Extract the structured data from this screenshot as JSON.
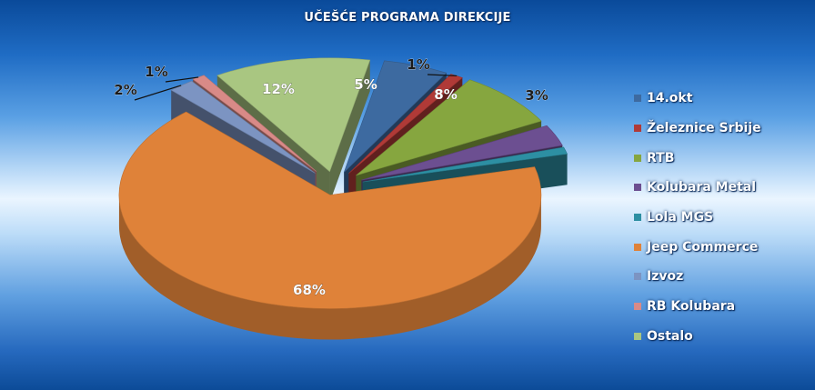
{
  "chart_data": {
    "type": "pie",
    "title": "UČEŠĆE PROGRAMA DIREKCIJE",
    "categories": [
      "14.okt",
      "Železnice Srbije",
      "RTB",
      "Kolubara Metal",
      "Lola MGS",
      "Jeep Commerce",
      "Izvoz",
      "RB Kolubara",
      "Ostalo"
    ],
    "values": [
      5,
      1,
      8,
      3,
      0,
      68,
      2,
      1,
      12
    ],
    "data_labels": [
      "5%",
      "1%",
      "8%",
      "3%",
      "",
      "68%",
      "2%",
      "1%",
      "12%"
    ],
    "colors": [
      "#3d6aa0",
      "#b03a37",
      "#86a63f",
      "#6c4f91",
      "#2d8fa3",
      "#df8239",
      "#7c94c2",
      "#d88a87",
      "#a9c681"
    ],
    "legend_position": "right",
    "style": "3d-exploded-pie"
  },
  "legend": [
    {
      "label": "14.okt",
      "color": "#3d6aa0"
    },
    {
      "label": "Železnice Srbije",
      "color": "#b03a37"
    },
    {
      "label": "RTB",
      "color": "#86a63f"
    },
    {
      "label": "Kolubara Metal",
      "color": "#6c4f91"
    },
    {
      "label": "Lola MGS",
      "color": "#2d8fa3"
    },
    {
      "label": "Jeep Commerce",
      "color": "#df8239"
    },
    {
      "label": "Izvoz",
      "color": "#7c94c2"
    },
    {
      "label": "RB Kolubara",
      "color": "#d88a87"
    },
    {
      "label": "Ostalo",
      "color": "#a9c681"
    }
  ]
}
